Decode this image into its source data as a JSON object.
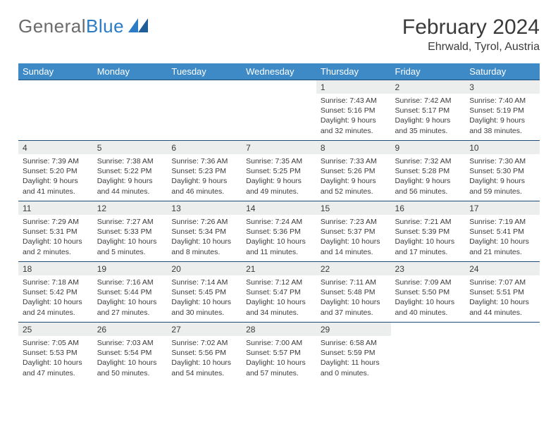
{
  "brand": {
    "part1": "General",
    "part2": "Blue"
  },
  "title": "February 2024",
  "location": "Ehrwald, Tyrol, Austria",
  "colors": {
    "header_bg": "#3d8ac7",
    "header_text": "#ffffff",
    "row_divider": "#1f4b79",
    "daynum_bg": "#eceded",
    "text": "#3a3a3a",
    "logo_gray": "#6b6b6b",
    "logo_blue": "#2b7cc4"
  },
  "weekdays": [
    "Sunday",
    "Monday",
    "Tuesday",
    "Wednesday",
    "Thursday",
    "Friday",
    "Saturday"
  ],
  "weeks": [
    [
      null,
      null,
      null,
      null,
      {
        "n": "1",
        "sr": "7:43 AM",
        "ss": "5:16 PM",
        "dl": "9 hours and 32 minutes."
      },
      {
        "n": "2",
        "sr": "7:42 AM",
        "ss": "5:17 PM",
        "dl": "9 hours and 35 minutes."
      },
      {
        "n": "3",
        "sr": "7:40 AM",
        "ss": "5:19 PM",
        "dl": "9 hours and 38 minutes."
      }
    ],
    [
      {
        "n": "4",
        "sr": "7:39 AM",
        "ss": "5:20 PM",
        "dl": "9 hours and 41 minutes."
      },
      {
        "n": "5",
        "sr": "7:38 AM",
        "ss": "5:22 PM",
        "dl": "9 hours and 44 minutes."
      },
      {
        "n": "6",
        "sr": "7:36 AM",
        "ss": "5:23 PM",
        "dl": "9 hours and 46 minutes."
      },
      {
        "n": "7",
        "sr": "7:35 AM",
        "ss": "5:25 PM",
        "dl": "9 hours and 49 minutes."
      },
      {
        "n": "8",
        "sr": "7:33 AM",
        "ss": "5:26 PM",
        "dl": "9 hours and 52 minutes."
      },
      {
        "n": "9",
        "sr": "7:32 AM",
        "ss": "5:28 PM",
        "dl": "9 hours and 56 minutes."
      },
      {
        "n": "10",
        "sr": "7:30 AM",
        "ss": "5:30 PM",
        "dl": "9 hours and 59 minutes."
      }
    ],
    [
      {
        "n": "11",
        "sr": "7:29 AM",
        "ss": "5:31 PM",
        "dl": "10 hours and 2 minutes."
      },
      {
        "n": "12",
        "sr": "7:27 AM",
        "ss": "5:33 PM",
        "dl": "10 hours and 5 minutes."
      },
      {
        "n": "13",
        "sr": "7:26 AM",
        "ss": "5:34 PM",
        "dl": "10 hours and 8 minutes."
      },
      {
        "n": "14",
        "sr": "7:24 AM",
        "ss": "5:36 PM",
        "dl": "10 hours and 11 minutes."
      },
      {
        "n": "15",
        "sr": "7:23 AM",
        "ss": "5:37 PM",
        "dl": "10 hours and 14 minutes."
      },
      {
        "n": "16",
        "sr": "7:21 AM",
        "ss": "5:39 PM",
        "dl": "10 hours and 17 minutes."
      },
      {
        "n": "17",
        "sr": "7:19 AM",
        "ss": "5:41 PM",
        "dl": "10 hours and 21 minutes."
      }
    ],
    [
      {
        "n": "18",
        "sr": "7:18 AM",
        "ss": "5:42 PM",
        "dl": "10 hours and 24 minutes."
      },
      {
        "n": "19",
        "sr": "7:16 AM",
        "ss": "5:44 PM",
        "dl": "10 hours and 27 minutes."
      },
      {
        "n": "20",
        "sr": "7:14 AM",
        "ss": "5:45 PM",
        "dl": "10 hours and 30 minutes."
      },
      {
        "n": "21",
        "sr": "7:12 AM",
        "ss": "5:47 PM",
        "dl": "10 hours and 34 minutes."
      },
      {
        "n": "22",
        "sr": "7:11 AM",
        "ss": "5:48 PM",
        "dl": "10 hours and 37 minutes."
      },
      {
        "n": "23",
        "sr": "7:09 AM",
        "ss": "5:50 PM",
        "dl": "10 hours and 40 minutes."
      },
      {
        "n": "24",
        "sr": "7:07 AM",
        "ss": "5:51 PM",
        "dl": "10 hours and 44 minutes."
      }
    ],
    [
      {
        "n": "25",
        "sr": "7:05 AM",
        "ss": "5:53 PM",
        "dl": "10 hours and 47 minutes."
      },
      {
        "n": "26",
        "sr": "7:03 AM",
        "ss": "5:54 PM",
        "dl": "10 hours and 50 minutes."
      },
      {
        "n": "27",
        "sr": "7:02 AM",
        "ss": "5:56 PM",
        "dl": "10 hours and 54 minutes."
      },
      {
        "n": "28",
        "sr": "7:00 AM",
        "ss": "5:57 PM",
        "dl": "10 hours and 57 minutes."
      },
      {
        "n": "29",
        "sr": "6:58 AM",
        "ss": "5:59 PM",
        "dl": "11 hours and 0 minutes."
      },
      null,
      null
    ]
  ],
  "labels": {
    "sunrise": "Sunrise:",
    "sunset": "Sunset:",
    "daylight": "Daylight:"
  }
}
